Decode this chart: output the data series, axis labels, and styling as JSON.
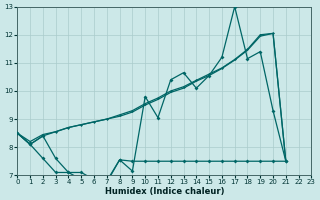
{
  "xlabel": "Humidex (Indice chaleur)",
  "xlim": [
    0,
    23
  ],
  "ylim": [
    7,
    13
  ],
  "yticks": [
    7,
    8,
    9,
    10,
    11,
    12,
    13
  ],
  "xticks": [
    0,
    1,
    2,
    3,
    4,
    5,
    6,
    7,
    8,
    9,
    10,
    11,
    12,
    13,
    14,
    15,
    16,
    17,
    18,
    19,
    20,
    21,
    22,
    23
  ],
  "bg_color": "#cce8e8",
  "grid_color": "#aacccc",
  "line_color": "#006666",
  "line_spiky_x": [
    0,
    1,
    2,
    3,
    4,
    5,
    6,
    7,
    8,
    9,
    10,
    11,
    12,
    13,
    14,
    15,
    16,
    17,
    18,
    19,
    20,
    21
  ],
  "line_spiky_y": [
    8.5,
    8.1,
    8.4,
    7.6,
    7.1,
    7.1,
    6.85,
    6.8,
    7.55,
    7.15,
    9.8,
    9.05,
    10.4,
    10.65,
    10.1,
    10.55,
    11.2,
    13.0,
    11.15,
    11.4,
    9.3,
    7.5
  ],
  "line_upper_x": [
    0,
    1,
    2,
    3,
    4,
    5,
    6,
    7,
    8,
    9,
    10,
    11,
    12,
    13,
    14,
    15,
    16,
    17,
    18,
    19,
    20,
    21
  ],
  "line_upper_y": [
    8.5,
    8.1,
    8.4,
    8.55,
    8.7,
    8.8,
    8.9,
    9.0,
    9.1,
    9.25,
    9.5,
    9.7,
    9.95,
    10.1,
    10.35,
    10.55,
    10.8,
    11.1,
    11.45,
    11.95,
    12.05,
    7.5
  ],
  "line_lower_x": [
    0,
    1,
    2,
    3,
    4,
    5,
    6,
    7,
    8,
    9,
    10,
    11,
    12,
    13,
    14,
    15,
    16,
    17,
    18,
    19,
    20,
    21
  ],
  "line_lower_y": [
    8.5,
    8.1,
    7.6,
    7.1,
    7.1,
    6.85,
    6.8,
    6.75,
    7.55,
    7.5,
    7.5,
    7.5,
    7.5,
    7.5,
    7.5,
    7.5,
    7.5,
    7.5,
    7.5,
    7.5,
    7.5,
    7.5
  ],
  "line_trend_x": [
    0,
    1,
    2,
    3,
    4,
    5,
    6,
    7,
    8,
    9,
    10,
    11,
    12,
    13,
    14,
    15,
    16,
    17,
    18,
    19,
    20,
    21
  ],
  "line_trend_y": [
    8.5,
    8.2,
    8.45,
    8.55,
    8.7,
    8.8,
    8.9,
    9.0,
    9.15,
    9.3,
    9.55,
    9.75,
    10.0,
    10.15,
    10.38,
    10.6,
    10.82,
    11.12,
    11.48,
    12.0,
    12.05,
    7.5
  ]
}
